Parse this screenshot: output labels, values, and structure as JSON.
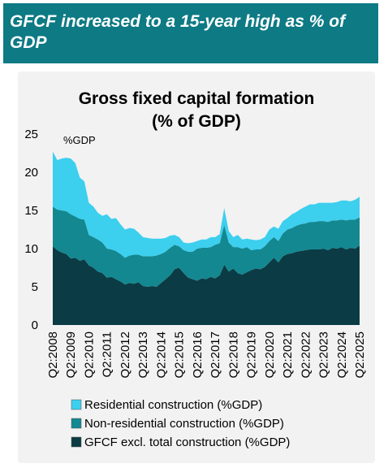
{
  "header": {
    "title": "GFCF increased to a 15-year high as % of GDP"
  },
  "chart_data": {
    "type": "stacked_area",
    "title": "Gross fixed capital formation",
    "subtitle": "(% of GDP)",
    "y_label": "%GDP",
    "categories": [
      "Q2:2008",
      null,
      null,
      null,
      "Q2:2009",
      null,
      null,
      null,
      "Q2:2010",
      null,
      null,
      null,
      "Q2:2011",
      null,
      null,
      null,
      "Q2:2012",
      null,
      null,
      null,
      "Q2:2013",
      null,
      null,
      null,
      "Q2:2014",
      null,
      null,
      null,
      "Q2:2015",
      null,
      null,
      null,
      "Q2:2016",
      null,
      null,
      null,
      "Q2:2017",
      null,
      null,
      null,
      "Q2:2018",
      null,
      null,
      null,
      "Q2:2019",
      null,
      null,
      null,
      "Q2:2020",
      null,
      null,
      null,
      "Q2:2021",
      null,
      null,
      null,
      "Q2:2022",
      null,
      null,
      null,
      "Q2:2023",
      null,
      null,
      null,
      "Q2:2024",
      null,
      null,
      null,
      "Q2:2025"
    ],
    "series": [
      {
        "name": "GFCF excl. total construction (%GDP)",
        "color": "#0b3b44",
        "values": [
          10.3,
          9.8,
          9.5,
          9.3,
          8.7,
          8.8,
          8.4,
          8.6,
          7.8,
          7.5,
          7,
          6.8,
          6.2,
          6.3,
          6,
          5.7,
          5.3,
          5.5,
          5.4,
          5.6,
          5.1,
          5.0,
          5.1,
          5.0,
          5.5,
          6,
          6.5,
          7.3,
          7.5,
          6.8,
          6.2,
          6.0,
          5.8,
          6.1,
          6.0,
          6.3,
          6.1,
          6.5,
          7.9,
          7.0,
          7.4,
          6.8,
          6.6,
          6.9,
          7.2,
          7.4,
          7.3,
          7.6,
          8.2,
          8.8,
          8.2,
          9.0,
          9.3,
          9.4,
          9.6,
          9.7,
          9.8,
          9.9,
          9.9,
          9.9,
          10.0,
          9.8,
          10.1,
          10.0,
          10.2,
          9.9,
          10.1,
          10.0,
          10.4
        ]
      },
      {
        "name": "Non-residential construction (%GDP)",
        "color": "#138891",
        "values": [
          5.2,
          5.3,
          5.5,
          5.6,
          5.8,
          5.4,
          5.5,
          5.2,
          4.0,
          4.0,
          4.2,
          4.0,
          3.8,
          3.6,
          3.7,
          3.6,
          3.5,
          3.6,
          3.8,
          3.6,
          3.9,
          4.0,
          3.9,
          4.1,
          3.8,
          3.6,
          3.6,
          3.2,
          2.8,
          3.0,
          3.4,
          3.6,
          4.2,
          4.0,
          4.1,
          3.9,
          4.4,
          4.2,
          5.2,
          3.8,
          2.8,
          3.4,
          3.4,
          3.3,
          2.6,
          2.5,
          2.6,
          2.7,
          2.8,
          2.7,
          2.8,
          3.0,
          3.2,
          3.3,
          3.4,
          3.5,
          3.5,
          3.6,
          3.6,
          3.7,
          3.6,
          3.7,
          3.6,
          3.7,
          3.6,
          3.8,
          3.7,
          3.8,
          3.7
        ]
      },
      {
        "name": "Residential construction (%GDP)",
        "color": "#3ccfee",
        "values": [
          7.2,
          6.5,
          6.8,
          7.0,
          7.3,
          7.0,
          5.4,
          5.0,
          4.2,
          4.0,
          3.5,
          3.5,
          4.5,
          4.0,
          4.3,
          3.9,
          3.7,
          3.6,
          3.4,
          2.9,
          2.5,
          2.4,
          2.3,
          2.2,
          2.0,
          1.8,
          1.6,
          1.3,
          1.2,
          1.0,
          1.1,
          1.2,
          1.0,
          1.1,
          1.1,
          1.3,
          1.0,
          1.2,
          2.2,
          1.5,
          1.3,
          1.6,
          1.2,
          1.1,
          1.4,
          1.2,
          1.3,
          1.2,
          1.5,
          1.4,
          1.6,
          1.6,
          1.5,
          1.8,
          1.8,
          2.0,
          2.2,
          2.3,
          2.3,
          2.4,
          2.4,
          2.5,
          2.3,
          2.4,
          2.5,
          2.6,
          2.4,
          2.6,
          2.7
        ]
      }
    ],
    "ylim": [
      0,
      25
    ],
    "yticks": [
      0,
      5,
      10,
      15,
      20,
      25
    ],
    "grid": false,
    "legend": "bottom"
  }
}
